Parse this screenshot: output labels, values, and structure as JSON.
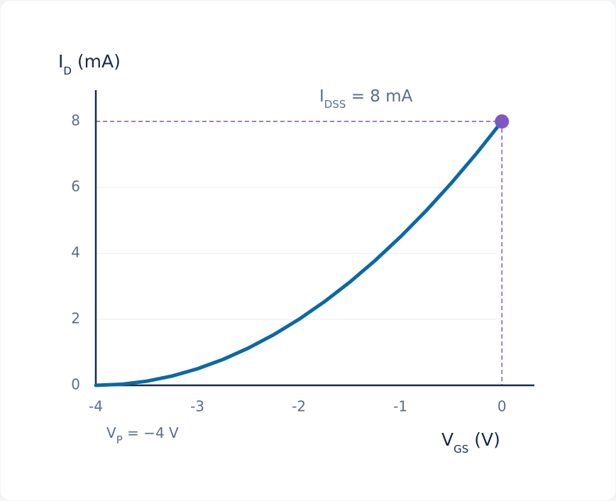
{
  "chart_data": {
    "type": "line",
    "ylabel": [
      "I",
      "D",
      " (mA)"
    ],
    "xlabel": [
      "V",
      "GS",
      " (V)"
    ],
    "annotations": [
      {
        "parts": [
          "I",
          "DSS",
          " = 8 mA"
        ]
      },
      {
        "parts": [
          "V",
          "P",
          " = −4 V"
        ]
      }
    ],
    "x": [
      -4,
      -3.75,
      -3.5,
      -3.25,
      -3,
      -2.75,
      -2.5,
      -2.25,
      -2,
      -1.75,
      -1.5,
      -1.25,
      -1,
      -0.75,
      -0.5,
      -0.25,
      0
    ],
    "series": [
      {
        "color": "#0b69a3",
        "values": [
          0,
          0.03125,
          0.125,
          0.28125,
          0.5,
          0.78125,
          1.125,
          1.53125,
          2,
          2.53125,
          3.125,
          3.78125,
          4.5,
          5.28125,
          6.125,
          7.03125,
          8
        ]
      }
    ],
    "marker": {
      "x": 0,
      "y": 8,
      "color": "#7e57c2"
    },
    "xlim": [
      -4,
      0.32
    ],
    "ylim": [
      0,
      8.95
    ],
    "xticks": [
      -4,
      -3,
      -2,
      -1,
      0
    ],
    "yticks": [
      0,
      2,
      4,
      6,
      8
    ],
    "grid": true
  }
}
